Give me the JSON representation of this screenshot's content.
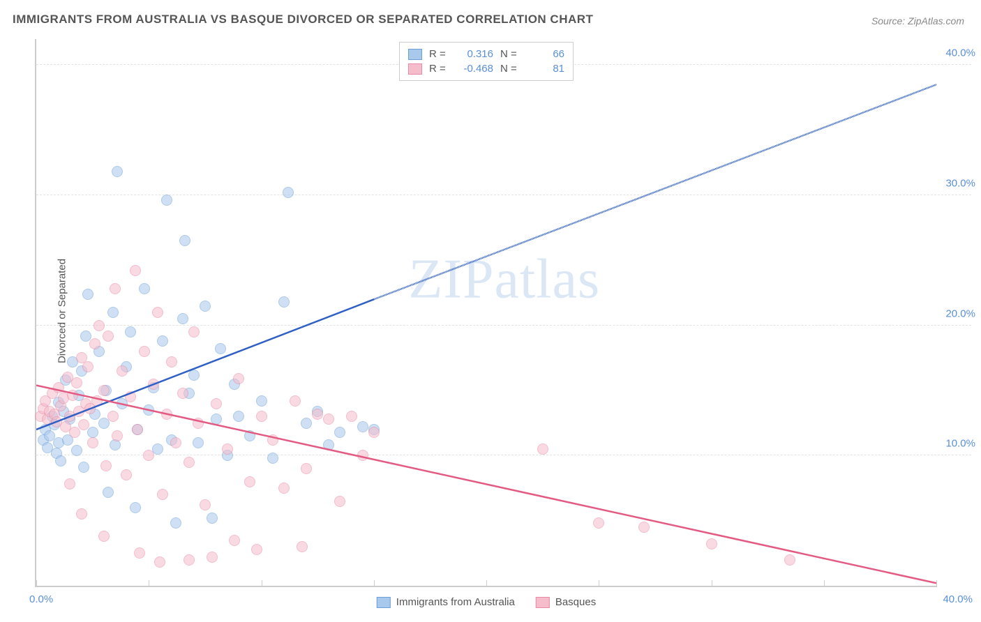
{
  "title": "IMMIGRANTS FROM AUSTRALIA VS BASQUE DIVORCED OR SEPARATED CORRELATION CHART",
  "source": "Source: ZipAtlas.com",
  "watermark": "ZIPatlas",
  "ylabel": "Divorced or Separated",
  "chart": {
    "type": "scatter",
    "background_color": "#ffffff",
    "grid_color": "#e3e3e3",
    "axis_color": "#cccccc",
    "tick_label_color": "#5a8fd6",
    "xlim": [
      0,
      40
    ],
    "ylim": [
      0,
      42
    ],
    "xtick_positions": [
      0,
      5,
      10,
      15,
      20,
      25,
      30,
      35,
      40
    ],
    "xtick_labels": {
      "left": "0.0%",
      "right": "40.0%"
    },
    "ytick_positions": [
      10,
      20,
      30,
      40
    ],
    "ytick_labels": [
      "10.0%",
      "20.0%",
      "30.0%",
      "40.0%"
    ],
    "marker_size": 16,
    "marker_opacity": 0.55,
    "series": [
      {
        "key": "australia",
        "label": "Immigrants from Australia",
        "fill_color": "#a8c8ec",
        "stroke_color": "#6b9fd8",
        "line_color": "#2f5fc4",
        "R": "0.316",
        "N": "66",
        "trend": {
          "x1": 0,
          "y1": 12.0,
          "x2_solid": 15,
          "y2_solid": 22.0,
          "x2_dashed": 40,
          "y2_dashed": 38.5
        },
        "points": [
          [
            0.3,
            11.2
          ],
          [
            0.4,
            12.0
          ],
          [
            0.5,
            10.6
          ],
          [
            0.6,
            11.5
          ],
          [
            0.7,
            13.0
          ],
          [
            0.8,
            12.4
          ],
          [
            0.9,
            10.2
          ],
          [
            1.0,
            14.1
          ],
          [
            1.0,
            11.0
          ],
          [
            1.1,
            9.6
          ],
          [
            1.2,
            13.4
          ],
          [
            1.3,
            15.8
          ],
          [
            1.4,
            11.2
          ],
          [
            1.5,
            12.8
          ],
          [
            1.6,
            17.2
          ],
          [
            1.8,
            10.4
          ],
          [
            1.9,
            14.6
          ],
          [
            2.0,
            16.5
          ],
          [
            2.1,
            9.1
          ],
          [
            2.2,
            19.2
          ],
          [
            2.3,
            22.4
          ],
          [
            2.5,
            11.8
          ],
          [
            2.6,
            13.2
          ],
          [
            2.8,
            18.0
          ],
          [
            3.0,
            12.5
          ],
          [
            3.1,
            15.0
          ],
          [
            3.2,
            7.2
          ],
          [
            3.4,
            21.0
          ],
          [
            3.5,
            10.8
          ],
          [
            3.6,
            31.8
          ],
          [
            3.8,
            14.0
          ],
          [
            4.0,
            16.8
          ],
          [
            4.2,
            19.5
          ],
          [
            4.4,
            6.0
          ],
          [
            4.5,
            12.0
          ],
          [
            4.8,
            22.8
          ],
          [
            5.0,
            13.5
          ],
          [
            5.2,
            15.2
          ],
          [
            5.4,
            10.5
          ],
          [
            5.6,
            18.8
          ],
          [
            5.8,
            29.6
          ],
          [
            6.0,
            11.2
          ],
          [
            6.2,
            4.8
          ],
          [
            6.5,
            20.5
          ],
          [
            6.6,
            26.5
          ],
          [
            6.8,
            14.8
          ],
          [
            7.0,
            16.2
          ],
          [
            7.2,
            11.0
          ],
          [
            7.5,
            21.5
          ],
          [
            7.8,
            5.2
          ],
          [
            8.0,
            12.8
          ],
          [
            8.2,
            18.2
          ],
          [
            8.5,
            10.0
          ],
          [
            8.8,
            15.5
          ],
          [
            9.0,
            13.0
          ],
          [
            9.5,
            11.5
          ],
          [
            10.0,
            14.2
          ],
          [
            10.5,
            9.8
          ],
          [
            11.0,
            21.8
          ],
          [
            11.2,
            30.2
          ],
          [
            12.0,
            12.5
          ],
          [
            12.5,
            13.4
          ],
          [
            13.0,
            10.8
          ],
          [
            13.5,
            11.8
          ],
          [
            14.5,
            12.2
          ],
          [
            15.0,
            12.0
          ]
        ]
      },
      {
        "key": "basques",
        "label": "Basques",
        "fill_color": "#f5bccb",
        "stroke_color": "#e88aa3",
        "line_color": "#e35a82",
        "R": "-0.468",
        "N": "81",
        "trend": {
          "x1": 0,
          "y1": 15.4,
          "x2_solid": 40,
          "y2_solid": 0.2
        },
        "points": [
          [
            0.2,
            13.0
          ],
          [
            0.3,
            13.6
          ],
          [
            0.4,
            14.2
          ],
          [
            0.5,
            12.8
          ],
          [
            0.6,
            13.4
          ],
          [
            0.7,
            14.8
          ],
          [
            0.8,
            13.2
          ],
          [
            0.9,
            12.6
          ],
          [
            1.0,
            15.2
          ],
          [
            1.1,
            13.8
          ],
          [
            1.2,
            14.4
          ],
          [
            1.3,
            12.2
          ],
          [
            1.4,
            16.0
          ],
          [
            1.5,
            13.0
          ],
          [
            1.6,
            14.6
          ],
          [
            1.7,
            11.8
          ],
          [
            1.8,
            15.6
          ],
          [
            1.9,
            13.4
          ],
          [
            2.0,
            17.5
          ],
          [
            2.1,
            12.4
          ],
          [
            2.2,
            14.0
          ],
          [
            2.3,
            16.8
          ],
          [
            2.4,
            13.6
          ],
          [
            2.5,
            11.0
          ],
          [
            2.6,
            18.6
          ],
          [
            2.7,
            14.2
          ],
          [
            2.8,
            20.0
          ],
          [
            3.0,
            15.0
          ],
          [
            3.1,
            9.2
          ],
          [
            3.2,
            19.2
          ],
          [
            3.4,
            13.0
          ],
          [
            3.5,
            22.8
          ],
          [
            3.6,
            11.5
          ],
          [
            3.8,
            16.5
          ],
          [
            4.0,
            8.5
          ],
          [
            4.2,
            14.5
          ],
          [
            4.4,
            24.2
          ],
          [
            4.5,
            12.0
          ],
          [
            4.8,
            18.0
          ],
          [
            5.0,
            10.0
          ],
          [
            5.2,
            15.5
          ],
          [
            5.4,
            21.0
          ],
          [
            5.6,
            7.0
          ],
          [
            5.8,
            13.2
          ],
          [
            6.0,
            17.2
          ],
          [
            6.2,
            11.0
          ],
          [
            6.5,
            14.8
          ],
          [
            6.8,
            9.5
          ],
          [
            7.0,
            19.5
          ],
          [
            7.2,
            12.5
          ],
          [
            7.5,
            6.2
          ],
          [
            8.0,
            14.0
          ],
          [
            8.5,
            10.5
          ],
          [
            9.0,
            15.9
          ],
          [
            9.5,
            8.0
          ],
          [
            10.0,
            13.0
          ],
          [
            10.5,
            11.2
          ],
          [
            11.0,
            7.5
          ],
          [
            11.5,
            14.2
          ],
          [
            12.0,
            9.0
          ],
          [
            12.5,
            13.2
          ],
          [
            13.0,
            12.8
          ],
          [
            13.5,
            6.5
          ],
          [
            14.0,
            13.0
          ],
          [
            14.5,
            10.0
          ],
          [
            15.0,
            11.8
          ],
          [
            22.5,
            10.5
          ],
          [
            25.0,
            4.8
          ],
          [
            27.0,
            4.5
          ],
          [
            30.0,
            3.2
          ],
          [
            33.5,
            2.0
          ],
          [
            7.8,
            2.2
          ],
          [
            4.6,
            2.5
          ],
          [
            3.0,
            3.8
          ],
          [
            2.0,
            5.5
          ],
          [
            1.5,
            7.8
          ],
          [
            8.8,
            3.5
          ],
          [
            11.8,
            3.0
          ],
          [
            5.5,
            1.8
          ],
          [
            6.8,
            2.0
          ],
          [
            9.8,
            2.8
          ]
        ]
      }
    ]
  },
  "legend_top": {
    "R_label": "R =",
    "N_label": "N ="
  },
  "legend_bottom_labels": [
    "Immigrants from Australia",
    "Basques"
  ]
}
